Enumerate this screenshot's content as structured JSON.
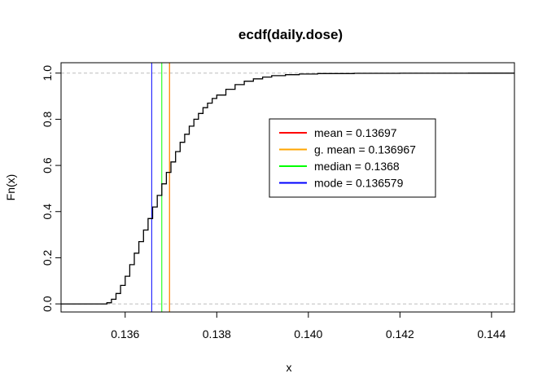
{
  "chart_data": {
    "type": "line",
    "title": "ecdf(daily.dose)",
    "xlabel": "x",
    "ylabel": "Fn(x)",
    "xlim": [
      0.1346,
      0.1445
    ],
    "ylim": [
      -0.035,
      1.045
    ],
    "x_ticks": [
      0.136,
      0.138,
      0.14,
      0.142,
      0.144
    ],
    "x_tick_labels": [
      "0.136",
      "0.138",
      "0.140",
      "0.142",
      "0.144"
    ],
    "y_ticks": [
      0.0,
      0.2,
      0.4,
      0.6,
      0.8,
      1.0
    ],
    "y_tick_labels": [
      "0.0",
      "0.2",
      "0.4",
      "0.6",
      "0.8",
      "1.0"
    ],
    "reference_lines_y": [
      0,
      1
    ],
    "series": [
      {
        "color": "#000000",
        "x": [
          0.1346,
          0.13555,
          0.1356,
          0.1357,
          0.1358,
          0.1359,
          0.136,
          0.1361,
          0.1362,
          0.1363,
          0.1364,
          0.1365,
          0.1366,
          0.1367,
          0.1368,
          0.1369,
          0.137,
          0.1371,
          0.1372,
          0.1373,
          0.1374,
          0.1375,
          0.1376,
          0.1377,
          0.1378,
          0.1379,
          0.138,
          0.1382,
          0.1384,
          0.1386,
          0.1388,
          0.139,
          0.1392,
          0.1395,
          0.1398,
          0.1402,
          0.141,
          0.142,
          0.1435,
          0.1445
        ],
        "y": [
          0.0,
          0.0,
          0.005,
          0.02,
          0.045,
          0.08,
          0.12,
          0.17,
          0.22,
          0.27,
          0.32,
          0.37,
          0.42,
          0.47,
          0.52,
          0.57,
          0.615,
          0.66,
          0.7,
          0.735,
          0.77,
          0.8,
          0.825,
          0.85,
          0.87,
          0.89,
          0.905,
          0.93,
          0.95,
          0.965,
          0.975,
          0.983,
          0.989,
          0.993,
          0.996,
          0.998,
          0.999,
          0.9995,
          1.0,
          1.0
        ]
      }
    ],
    "vertical_lines": [
      {
        "label": "mean = 0.13697",
        "x": 0.13697,
        "color": "#ff0000"
      },
      {
        "label": "g. mean = 0.136967",
        "x": 0.136967,
        "color": "#ffa500"
      },
      {
        "label": "median = 0.1368",
        "x": 0.1368,
        "color": "#00ff00"
      },
      {
        "label": "mode = 0.136579",
        "x": 0.136579,
        "color": "#0000ff"
      }
    ],
    "legend": {
      "position": "center-right",
      "entries": [
        {
          "label": "mean = 0.13697",
          "color": "#ff0000"
        },
        {
          "label": "g. mean = 0.136967",
          "color": "#ffa500"
        },
        {
          "label": "median = 0.1368",
          "color": "#00ff00"
        },
        {
          "label": "mode = 0.136579",
          "color": "#0000ff"
        }
      ]
    }
  }
}
